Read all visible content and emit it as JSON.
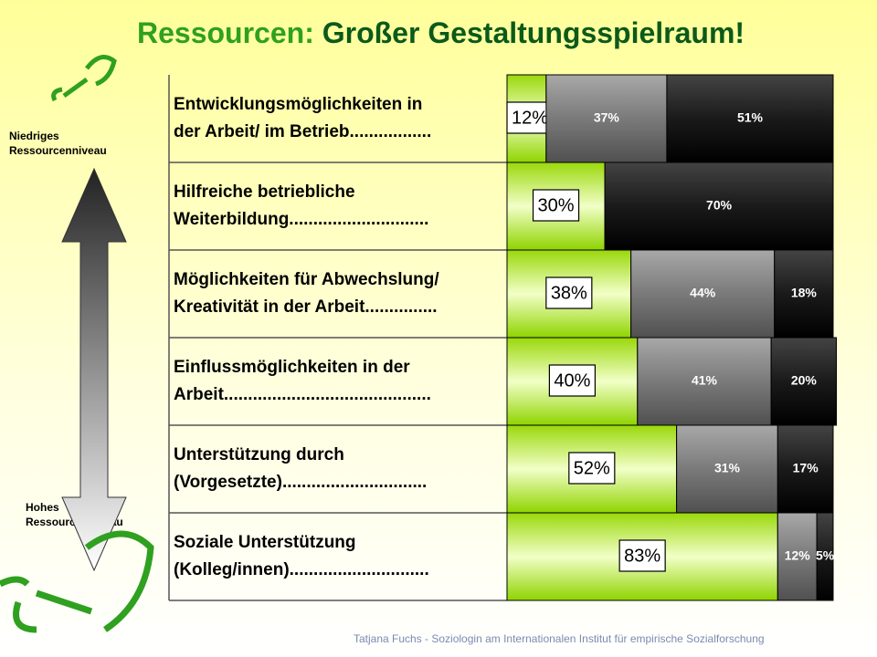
{
  "chart_data": {
    "type": "stacked-bar-horizontal",
    "title_lead": "Ressourcen:",
    "title": "Großer Gestaltungsspielraum!",
    "axis_top_label": "Niedriges\nRessourcenniveau",
    "axis_bottom_label": "Hohes\nRessourcenniveau",
    "footer": "Tatjana Fuchs - Soziologin am Internationalen Institut für empirische Sozialforschung",
    "categories": [
      "Entwicklungsmöglichkeiten in\nder Arbeit/ im Betrieb.................",
      "Hilfreiche betriebliche\nWeiterbildung.............................",
      "Möglichkeiten für Abwechslung/\nKreativität in der Arbeit...............",
      "Einflussmöglichkeiten in der\nArbeit...........................................",
      "Unterstützung durch\n(Vorgesetzte)..............................",
      "Soziale Unterstützung\n(Kolleg/innen)............................."
    ],
    "xlim": [
      0,
      100
    ],
    "series": [
      {
        "color": "#8fd400",
        "values": [
          12,
          30,
          38,
          40,
          52,
          83
        ],
        "value_labels": [
          "12%",
          "30%",
          "38%",
          "40%",
          "52%",
          "83%"
        ]
      },
      {
        "color": "#7a7a7a",
        "values": [
          37,
          null,
          44,
          41,
          31,
          12
        ],
        "value_labels": [
          "37%",
          null,
          "44%",
          "41%",
          "31%",
          "12%"
        ]
      },
      {
        "color": "#222222",
        "values": [
          51,
          70,
          18,
          20,
          17,
          5
        ],
        "value_labels": [
          "51%",
          "70%",
          "18%",
          "20%",
          "17%",
          "5%"
        ]
      }
    ]
  }
}
